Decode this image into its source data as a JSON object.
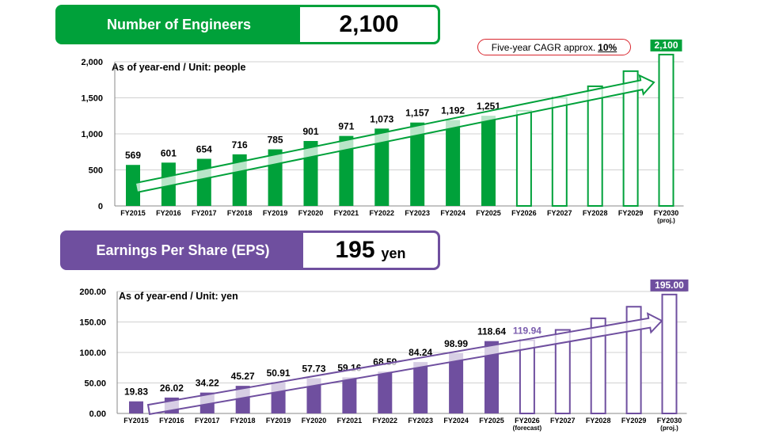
{
  "engineers": {
    "title": "Number of Engineers",
    "headline_value": "2,100",
    "note": "As of year-end / Unit: people",
    "cagr_prefix": "Five-year CAGR approx.",
    "cagr_value": "10%"
  },
  "eps": {
    "title": "Earnings Per Share (EPS)",
    "headline_value": "195",
    "headline_unit": "yen",
    "note": "As of year-end / Unit: yen"
  },
  "colors": {
    "engineers": "#00a13a",
    "eps": "#6f4f9f",
    "forecast_label": "#7a5cae",
    "cagr_border": "#d9262e"
  },
  "chart_data": [
    {
      "type": "bar",
      "title": "Number of Engineers",
      "categories": [
        "FY2015",
        "FY2016",
        "FY2017",
        "FY2018",
        "FY2019",
        "FY2020",
        "FY2021",
        "FY2022",
        "FY2023",
        "FY2024",
        "FY2025",
        "FY2026",
        "FY2027",
        "FY2028",
        "FY2029",
        "FY2030"
      ],
      "category_sublabels": [
        "",
        "",
        "",
        "",
        "",
        "",
        "",
        "",
        "",
        "",
        "",
        "",
        "",
        "",
        "",
        "(proj.)"
      ],
      "values": [
        569,
        601,
        654,
        716,
        785,
        901,
        971,
        1073,
        1157,
        1192,
        1251,
        1320,
        1500,
        1660,
        1870,
        2100
      ],
      "data_labels": [
        "569",
        "601",
        "654",
        "716",
        "785",
        "901",
        "971",
        "1,073",
        "1,157",
        "1,192",
        "1,251",
        "",
        "",
        "",
        "",
        "2,100"
      ],
      "actual_count": 11,
      "ylim": [
        0,
        2000
      ],
      "yticks": [
        0,
        500,
        1000,
        1500,
        2000
      ],
      "ytick_labels": [
        "0",
        "500",
        "1,000",
        "1,500",
        "2,000"
      ],
      "grid": true,
      "trend_arrow": true
    },
    {
      "type": "bar",
      "title": "Earnings Per Share (EPS)",
      "categories": [
        "FY2015",
        "FY2016",
        "FY2017",
        "FY2018",
        "FY2019",
        "FY2020",
        "FY2021",
        "FY2022",
        "FY2023",
        "FY2024",
        "FY2025",
        "FY2026",
        "FY2027",
        "FY2028",
        "FY2029",
        "FY2030"
      ],
      "category_sublabels": [
        "",
        "",
        "",
        "",
        "",
        "",
        "",
        "",
        "",
        "",
        "",
        "(forecast)",
        "",
        "",
        "",
        "(proj.)"
      ],
      "values": [
        19.83,
        26.02,
        34.22,
        45.27,
        50.91,
        57.73,
        59.16,
        68.59,
        84.24,
        98.99,
        118.64,
        119.94,
        137,
        156,
        175,
        195
      ],
      "data_labels": [
        "19.83",
        "26.02",
        "34.22",
        "45.27",
        "50.91",
        "57.73",
        "59.16",
        "68.59",
        "84.24",
        "98.99",
        "118.64",
        "119.94",
        "",
        "",
        "",
        "195.00"
      ],
      "actual_count": 11,
      "ylim": [
        0,
        200
      ],
      "yticks": [
        0,
        50,
        100,
        150,
        200
      ],
      "ytick_labels": [
        "0.00",
        "50.00",
        "100.00",
        "150.00",
        "200.00"
      ],
      "grid": true,
      "trend_arrow": true
    }
  ]
}
